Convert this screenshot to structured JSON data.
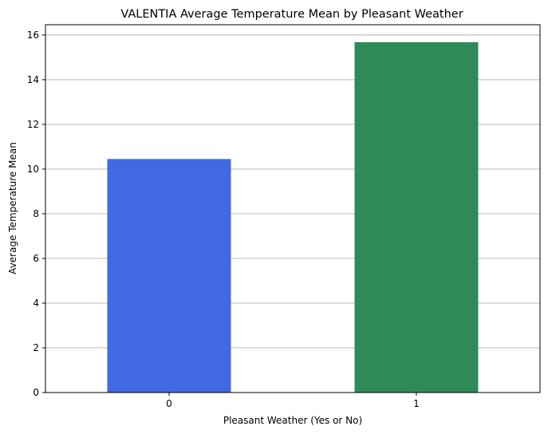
{
  "chart_data": {
    "type": "bar",
    "title": "VALENTIA Average Temperature Mean by Pleasant Weather",
    "xlabel": "Pleasant Weather (Yes or No)",
    "ylabel": "Average Temperature Mean",
    "categories": [
      "0",
      "1"
    ],
    "values": [
      10.45,
      15.68
    ],
    "colors": [
      "#4169e1",
      "#2e8b57"
    ],
    "ylim": [
      0,
      16.46
    ],
    "yticks": [
      0,
      2,
      4,
      6,
      8,
      10,
      12,
      14,
      16
    ],
    "grid": "y-axis on",
    "legend": "none"
  }
}
